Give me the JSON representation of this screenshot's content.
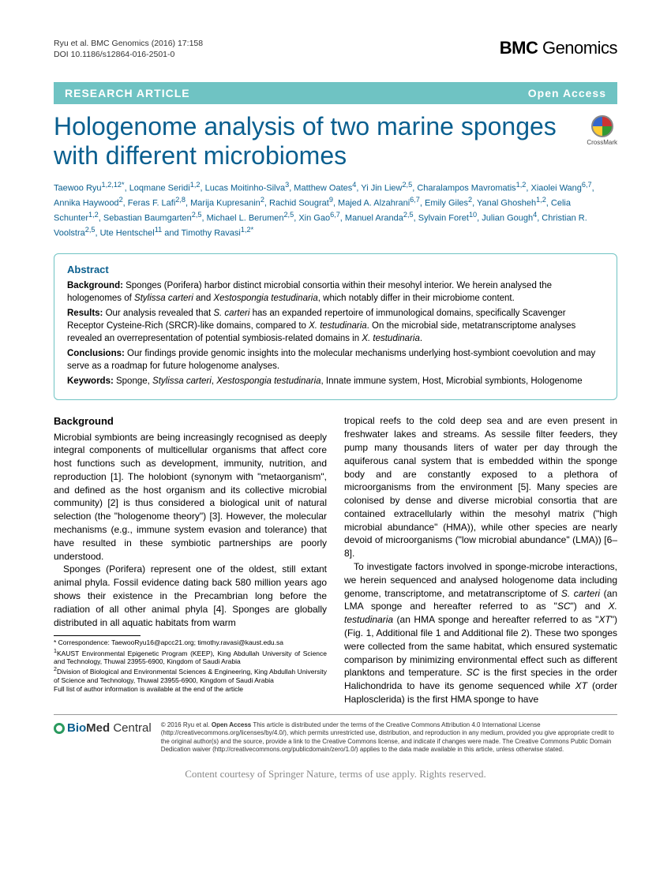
{
  "header": {
    "citation_line1": "Ryu et al. BMC Genomics  (2016) 17:158",
    "citation_line2": "DOI 10.1186/s12864-016-2501-0",
    "journal_prefix": "BMC",
    "journal_suffix": " Genomics"
  },
  "banner": {
    "left": "RESEARCH ARTICLE",
    "right": "Open Access"
  },
  "title": "Hologenome analysis of two marine sponges with different microbiomes",
  "crossmark_label": "CrossMark",
  "authors_html": "Taewoo Ryu<sup>1,2,12*</sup>, Loqmane Seridi<sup>1,2</sup>, Lucas Moitinho-Silva<sup>3</sup>, Matthew Oates<sup>4</sup>, Yi Jin Liew<sup>2,5</sup>, Charalampos Mavromatis<sup>1,2</sup>, Xiaolei Wang<sup>6,7</sup>, Annika Haywood<sup>2</sup>, Feras F. Lafi<sup>2,8</sup>, Marija Kupresanin<sup>2</sup>, Rachid Sougrat<sup>9</sup>, Majed A. Alzahrani<sup>6,7</sup>, Emily Giles<sup>2</sup>, Yanal Ghosheh<sup>1,2</sup>, Celia Schunter<sup>1,2</sup>, Sebastian Baumgarten<sup>2,5</sup>, Michael L. Berumen<sup>2,5</sup>, Xin Gao<sup>6,7</sup>, Manuel Aranda<sup>2,5</sup>, Sylvain Foret<sup>10</sup>, Julian Gough<sup>4</sup>, Christian R. Voolstra<sup>2,5</sup>, Ute Hentschel<sup>11</sup> and Timothy Ravasi<sup>1,2*</sup>",
  "abstract": {
    "heading": "Abstract",
    "background_label": "Background:",
    "background_text": " Sponges (Porifera) harbor distinct microbial consortia within their mesohyl interior. We herein analysed the hologenomes of <span class='italic'>Stylissa carteri</span> and <span class='italic'>Xestospongia testudinaria</span>, which notably differ in their microbiome content.",
    "results_label": "Results:",
    "results_text": " Our analysis revealed that <span class='italic'>S. carteri</span> has an expanded repertoire of immunological domains, specifically Scavenger Receptor Cysteine-Rich (SRCR)-like domains, compared to <span class='italic'>X. testudinaria</span>. On the microbial side, metatranscriptome analyses revealed an overrepresentation of potential symbiosis-related domains in <span class='italic'>X. testudinaria</span>.",
    "conclusions_label": "Conclusions:",
    "conclusions_text": " Our findings provide genomic insights into the molecular mechanisms underlying host-symbiont coevolution and may serve as a roadmap for future hologenome analyses.",
    "keywords_label": "Keywords:",
    "keywords_text": " Sponge, <span class='italic'>Stylissa carteri</span>, <span class='italic'>Xestospongia testudinaria</span>, Innate immune system, Host, Microbial symbionts, Hologenome"
  },
  "body": {
    "section_head": "Background",
    "col1_p1": "Microbial symbionts are being increasingly recognised as deeply integral components of multicellular organisms that affect core host functions such as development, immunity, nutrition, and reproduction [1]. The holobiont (synonym with \"metaorganism\", and defined as the host organism and its collective microbial community) [2] is thus considered a biological unit of natural selection (the \"hologenome theory\") [3]. However, the molecular mechanisms (e.g., immune system evasion and tolerance) that have resulted in these symbiotic partnerships are poorly understood.",
    "col1_p2": "Sponges (Porifera) represent one of the oldest, still extant animal phyla. Fossil evidence dating back 580 million years ago shows their existence in the Precambrian long before the radiation of all other animal phyla [4]. Sponges are globally distributed in all aquatic habitats from warm",
    "col2_p1": "tropical reefs to the cold deep sea and are even present in freshwater lakes and streams. As sessile filter feeders, they pump many thousands liters of water per day through the aquiferous canal system that is embedded within the sponge body and are constantly exposed to a plethora of microorganisms from the environment [5]. Many species are colonised by dense and diverse microbial consortia that are contained extracellularly within the mesohyl matrix (\"high microbial abundance\" (HMA)), while other species are nearly devoid of microorganisms (\"low microbial abundance\" (LMA)) [6–8].",
    "col2_p2": "To investigate factors involved in sponge-microbe interactions, we herein sequenced and analysed hologenome data including genome, transcriptome, and metatranscriptome of <span class='italic'>S. carteri</span> (an LMA sponge and hereafter referred to as \"<span class='italic'>SC</span>\") and <span class='italic'>X. testudinaria</span> (an HMA sponge and hereafter referred to as \"<span class='italic'>XT</span>\") (Fig. 1, Additional file 1 and Additional file 2). These two sponges were collected from the same habitat, which ensured systematic comparison by minimizing environmental effect such as different planktons and temperature. <span class='italic'>SC</span> is the first species in the order Halichondrida to have its genome sequenced while <span class='italic'>XT</span> (order Haplosclerida) is the first HMA sponge to have"
  },
  "correspondence": {
    "l1": "* Correspondence: TaewooRyu16@apcc21.org; timothy.ravasi@kaust.edu.sa",
    "l2": "<sup>1</sup>KAUST Environmental Epigenetic Program (KEEP), King Abdullah University of Science and Technology, Thuwal 23955-6900, Kingdom of Saudi Arabia",
    "l3": "<sup>2</sup>Division of Biological and Environmental Sciences & Engineering, King Abdullah University of Science and Technology, Thuwal 23955-6900, Kingdom of Saudi Arabia",
    "l4": "Full list of author information is available at the end of the article"
  },
  "footer": {
    "logo_bio": "Bio",
    "logo_med": "Med",
    "logo_central": " Central",
    "license": "© 2016 Ryu et al. <b>Open Access</b> This article is distributed under the terms of the Creative Commons Attribution 4.0 International License (http://creativecommons.org/licenses/by/4.0/), which permits unrestricted use, distribution, and reproduction in any medium, provided you give appropriate credit to the original author(s) and the source, provide a link to the Creative Commons license, and indicate if changes were made. The Creative Commons Public Domain Dedication waiver (http://creativecommons.org/publicdomain/zero/1.0/) applies to the data made available in this article, unless otherwise stated."
  },
  "courtesy": "Content courtesy of Springer Nature, terms of use apply. Rights reserved."
}
